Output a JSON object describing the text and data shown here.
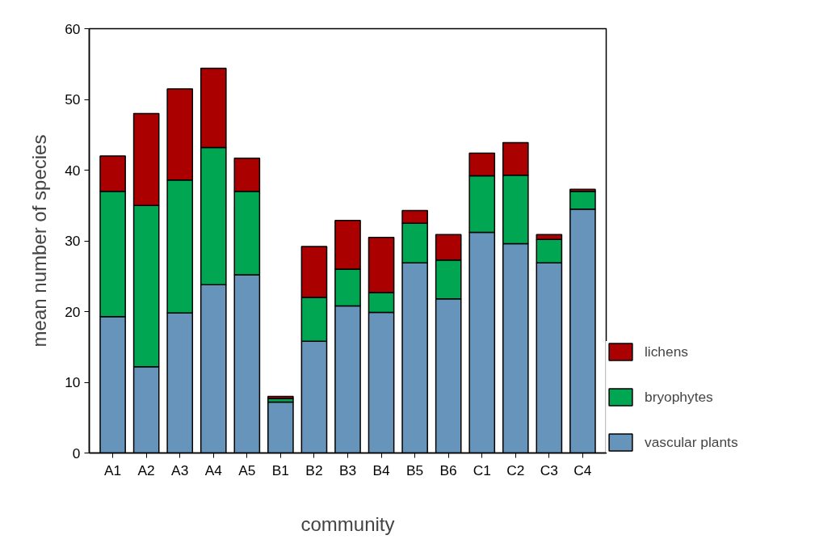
{
  "chart_data": {
    "type": "bar",
    "stacked": true,
    "xlabel": "community",
    "ylabel": "mean number of species",
    "categories": [
      "A1",
      "A2",
      "A3",
      "A4",
      "A5",
      "B1",
      "B2",
      "B3",
      "B4",
      "B5",
      "B6",
      "C1",
      "C2",
      "C3",
      "C4"
    ],
    "series": [
      {
        "name": "vascular plants",
        "color": "#6794bb",
        "values": [
          19.3,
          12.2,
          19.8,
          23.8,
          25.2,
          7.2,
          15.8,
          20.8,
          19.9,
          26.9,
          21.8,
          31.2,
          29.6,
          26.9,
          34.5
        ]
      },
      {
        "name": "bryophytes",
        "color": "#00a651",
        "values": [
          17.7,
          22.8,
          18.8,
          19.4,
          11.8,
          0.5,
          6.2,
          5.2,
          2.8,
          5.6,
          5.5,
          8.0,
          9.7,
          3.3,
          2.5
        ]
      },
      {
        "name": "lichens",
        "color": "#aa0000",
        "values": [
          5.0,
          13.0,
          12.9,
          11.2,
          4.7,
          0.3,
          7.2,
          6.9,
          7.8,
          1.8,
          3.6,
          3.2,
          4.6,
          0.7,
          0.3
        ]
      }
    ],
    "ylim": [
      0,
      60
    ],
    "yticks": [
      0,
      10,
      20,
      30,
      40,
      50,
      60
    ],
    "grid": false,
    "legend": "bottom right"
  }
}
